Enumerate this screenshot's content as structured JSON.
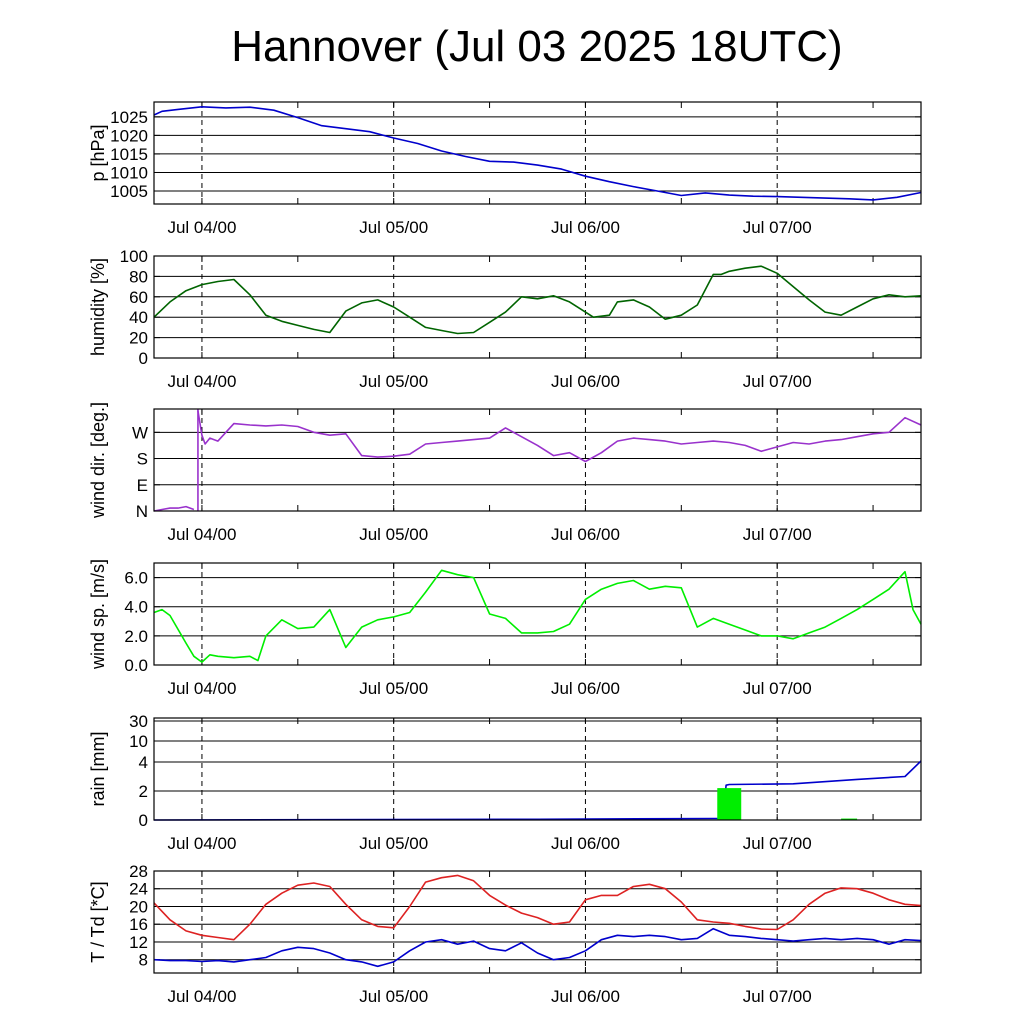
{
  "title": "Hannover (Jul 03 2025 18UTC)",
  "chart_data": [
    {
      "type": "line",
      "name": "pressure",
      "ylabel": "p [hPa]",
      "ylim": [
        1001.5,
        1029
      ],
      "yticks": [
        1005,
        1010,
        1015,
        1020,
        1025
      ],
      "yticklabels": [
        "1005",
        "1010",
        "1015",
        "1020",
        "1025"
      ],
      "x_ticks": [
        "Jul 04/00",
        "Jul 05/00",
        "Jul 06/00",
        "Jul 07/00"
      ],
      "x_range_hours": [
        0,
        96
      ],
      "grid": "horizontal at y ticks, dashed vertical at midnight",
      "series": [
        {
          "color": "#0000cc",
          "x": [
            0,
            1,
            3,
            6,
            9,
            12,
            15,
            18,
            21,
            24,
            27,
            30,
            33,
            36,
            39,
            42,
            45,
            48,
            51,
            54,
            57,
            60,
            63,
            66,
            69,
            72,
            75,
            78,
            81,
            84,
            87,
            90,
            93,
            96
          ],
          "y": [
            1025.5,
            1026.5,
            1027,
            1027.7,
            1027.4,
            1027.6,
            1026.8,
            1024.8,
            1022.6,
            1021.8,
            1021,
            1019.3,
            1017.8,
            1015.8,
            1014.3,
            1013,
            1012.8,
            1012,
            1010.9,
            1009,
            1007.5,
            1006.2,
            1005,
            1003.8,
            1004.5,
            1003.9,
            1003.6,
            1003.5,
            1003.3,
            1003.1,
            1002.9,
            1002.6,
            1003.3,
            1004.6
          ]
        }
      ]
    },
    {
      "type": "line",
      "name": "humidity",
      "ylabel": "humidity [%]",
      "ylim": [
        0,
        100
      ],
      "yticks": [
        0,
        20,
        40,
        60,
        80,
        100
      ],
      "yticklabels": [
        "0",
        "20",
        "40",
        "60",
        "80",
        "100"
      ],
      "x_ticks": [
        "Jul 04/00",
        "Jul 05/00",
        "Jul 06/00",
        "Jul 07/00"
      ],
      "x_range_hours": [
        0,
        96
      ],
      "series": [
        {
          "color": "#006400",
          "x": [
            0,
            2,
            4,
            6,
            8,
            10,
            12,
            14,
            16,
            18,
            20,
            22,
            24,
            26,
            28,
            30,
            32,
            34,
            36,
            38,
            40,
            42,
            44,
            46,
            48,
            50,
            52,
            54,
            55,
            57,
            58,
            60,
            62,
            64,
            66,
            68,
            70,
            71,
            72,
            74,
            76,
            78,
            80,
            82,
            84,
            86,
            88,
            90,
            92,
            94,
            96
          ],
          "y": [
            40,
            55,
            66,
            72,
            75,
            77,
            62,
            42,
            36,
            32,
            28,
            25,
            46,
            54,
            57,
            50,
            40,
            30,
            27,
            24,
            25,
            35,
            45,
            60,
            58,
            61,
            55,
            45,
            40,
            42,
            55,
            57,
            50,
            38,
            42,
            52,
            82,
            82,
            85,
            88,
            90,
            83,
            70,
            57,
            45,
            42,
            50,
            58,
            62,
            60,
            61
          ]
        }
      ]
    },
    {
      "type": "line",
      "name": "wind direction",
      "ylabel": "wind dir. [deg.]",
      "ylim": [
        0,
        350
      ],
      "yticks": [
        0,
        90,
        180,
        270
      ],
      "yticklabels": [
        "N",
        "E",
        "S",
        "W"
      ],
      "x_ticks": [
        "Jul 04/00",
        "Jul 05/00",
        "Jul 06/00",
        "Jul 07/00"
      ],
      "x_range_hours": [
        0,
        96
      ],
      "series": [
        {
          "color": "#9932cc",
          "x": [
            0,
            1,
            2,
            3,
            4,
            5,
            5.5,
            6,
            6.4,
            7,
            8,
            9,
            10,
            12,
            14,
            16,
            18,
            20,
            22,
            24,
            26,
            28,
            30,
            32,
            34,
            36,
            38,
            40,
            42,
            44,
            46,
            48,
            50,
            52,
            54,
            56,
            58,
            60,
            62,
            64,
            66,
            68,
            70,
            72,
            74,
            76,
            78,
            80,
            82,
            84,
            86,
            88,
            90,
            92,
            94,
            96
          ],
          "y": [
            0,
            5,
            10,
            10,
            15,
            5,
            345,
            260,
            230,
            250,
            240,
            270,
            300,
            295,
            292,
            295,
            290,
            270,
            260,
            265,
            190,
            185,
            188,
            195,
            230,
            235,
            240,
            245,
            250,
            285,
            255,
            225,
            190,
            200,
            170,
            200,
            240,
            250,
            245,
            240,
            230,
            235,
            240,
            235,
            225,
            205,
            220,
            235,
            230,
            240,
            245,
            255,
            265,
            270,
            320,
            295
          ]
        }
      ]
    },
    {
      "type": "line",
      "name": "wind speed",
      "ylabel": "wind sp. [m/s]",
      "ylim": [
        0,
        7
      ],
      "yticks": [
        0,
        2,
        4,
        6
      ],
      "yticklabels": [
        "0.0",
        "2.0",
        "4.0",
        "6.0"
      ],
      "x_ticks": [
        "Jul 04/00",
        "Jul 05/00",
        "Jul 06/00",
        "Jul 07/00"
      ],
      "x_range_hours": [
        0,
        96
      ],
      "series": [
        {
          "color": "#00ee00",
          "x": [
            0,
            1,
            2,
            4,
            5,
            6,
            7,
            8,
            10,
            12,
            13,
            14,
            16,
            18,
            20,
            22,
            24,
            26,
            28,
            30,
            32,
            34,
            36,
            38,
            40,
            42,
            44,
            46,
            48,
            50,
            52,
            54,
            56,
            58,
            60,
            62,
            64,
            66,
            68,
            70,
            72,
            74,
            76,
            78,
            80,
            82,
            84,
            86,
            88,
            90,
            92,
            94,
            95,
            96
          ],
          "y": [
            3.6,
            3.8,
            3.4,
            1.5,
            0.6,
            0.2,
            0.7,
            0.6,
            0.5,
            0.6,
            0.3,
            2.0,
            3.1,
            2.5,
            2.6,
            3.8,
            1.2,
            2.6,
            3.1,
            3.3,
            3.6,
            5.0,
            6.5,
            6.2,
            6.0,
            3.5,
            3.2,
            2.2,
            2.2,
            2.3,
            2.8,
            4.5,
            5.2,
            5.6,
            5.8,
            5.2,
            5.4,
            5.3,
            2.6,
            3.2,
            2.8,
            2.4,
            2.0,
            2.0,
            1.8,
            2.2,
            2.6,
            3.2,
            3.8,
            4.5,
            5.2,
            6.4,
            3.8,
            2.8
          ]
        }
      ]
    },
    {
      "type": "area",
      "name": "rain",
      "ylabel": "rain [mm]",
      "ylim_display": [
        0,
        35
      ],
      "yticks": [
        0,
        2,
        4,
        10,
        30
      ],
      "yticklabels": [
        "0",
        "2",
        "4",
        "10",
        "30"
      ],
      "x_ticks": [
        "Jul 04/00",
        "Jul 05/00",
        "Jul 06/00",
        "Jul 07/00"
      ],
      "x_range_hours": [
        0,
        96
      ],
      "series": [
        {
          "color": "#0000cc",
          "kind": "accumulated",
          "x": [
            0,
            48,
            70,
            71.2,
            71.6,
            72,
            80,
            88,
            94,
            96
          ],
          "y": [
            0,
            0.05,
            0.1,
            0.1,
            2.4,
            2.45,
            2.5,
            2.8,
            3.0,
            4.3
          ]
        },
        {
          "color": "#00ee00",
          "kind": "hourly",
          "x": [
            70.5,
            73.5,
            86,
            88
          ],
          "y": [
            2.2,
            2.2,
            0.1,
            0.1
          ]
        }
      ]
    },
    {
      "type": "line",
      "name": "temperature and dew point",
      "ylabel": "T / Td [*C]",
      "ylim": [
        5,
        28
      ],
      "yticks": [
        8,
        12,
        16,
        20,
        24,
        28
      ],
      "yticklabels": [
        "8",
        "12",
        "16",
        "20",
        "24",
        "28"
      ],
      "x_ticks": [
        "Jul 04/00",
        "Jul 05/00",
        "Jul 06/00",
        "Jul 07/00"
      ],
      "x_range_hours": [
        0,
        96
      ],
      "series": [
        {
          "color": "#dd2222",
          "x": [
            0,
            2,
            4,
            6,
            8,
            10,
            12,
            14,
            16,
            18,
            20,
            22,
            24,
            26,
            28,
            30,
            32,
            34,
            36,
            38,
            40,
            42,
            44,
            46,
            48,
            50,
            52,
            54,
            56,
            58,
            60,
            62,
            64,
            66,
            68,
            70,
            72,
            74,
            76,
            78,
            80,
            82,
            84,
            86,
            88,
            90,
            92,
            94,
            96
          ],
          "y": [
            20.8,
            17,
            14.5,
            13.5,
            13.0,
            12.5,
            16,
            20.5,
            23,
            24.8,
            25.3,
            24.5,
            20.5,
            17,
            15.5,
            15.2,
            20,
            25.5,
            26.5,
            27,
            25.8,
            22.5,
            20.3,
            18.5,
            17.5,
            16,
            16.5,
            21.5,
            22.5,
            22.5,
            24.5,
            25,
            24,
            21,
            17,
            16.5,
            16.2,
            15.5,
            14.9,
            14.8,
            17,
            20.5,
            23,
            24.2,
            24,
            23,
            21.5,
            20.5,
            20.2
          ]
        },
        {
          "color": "#0000cc",
          "x": [
            0,
            2,
            4,
            6,
            8,
            10,
            12,
            14,
            16,
            18,
            20,
            22,
            24,
            26,
            28,
            30,
            32,
            34,
            36,
            38,
            40,
            42,
            44,
            46,
            48,
            50,
            52,
            54,
            56,
            58,
            60,
            62,
            64,
            66,
            68,
            70,
            72,
            74,
            76,
            78,
            80,
            82,
            84,
            86,
            88,
            90,
            92,
            94,
            96
          ],
          "y": [
            8.0,
            7.8,
            7.8,
            7.6,
            7.8,
            7.5,
            8.0,
            8.5,
            10,
            10.8,
            10.5,
            9.5,
            8.0,
            7.5,
            6.5,
            7.5,
            10,
            12.0,
            12.5,
            11.5,
            12.2,
            10.5,
            10.0,
            11.8,
            9.5,
            8.0,
            8.5,
            10.0,
            12.5,
            13.5,
            13.2,
            13.5,
            13.2,
            12.5,
            12.8,
            15.0,
            13.5,
            13.2,
            12.8,
            12.5,
            12.2,
            12.5,
            12.8,
            12.5,
            12.8,
            12.5,
            11.5,
            12.5,
            12.3
          ]
        }
      ]
    }
  ]
}
